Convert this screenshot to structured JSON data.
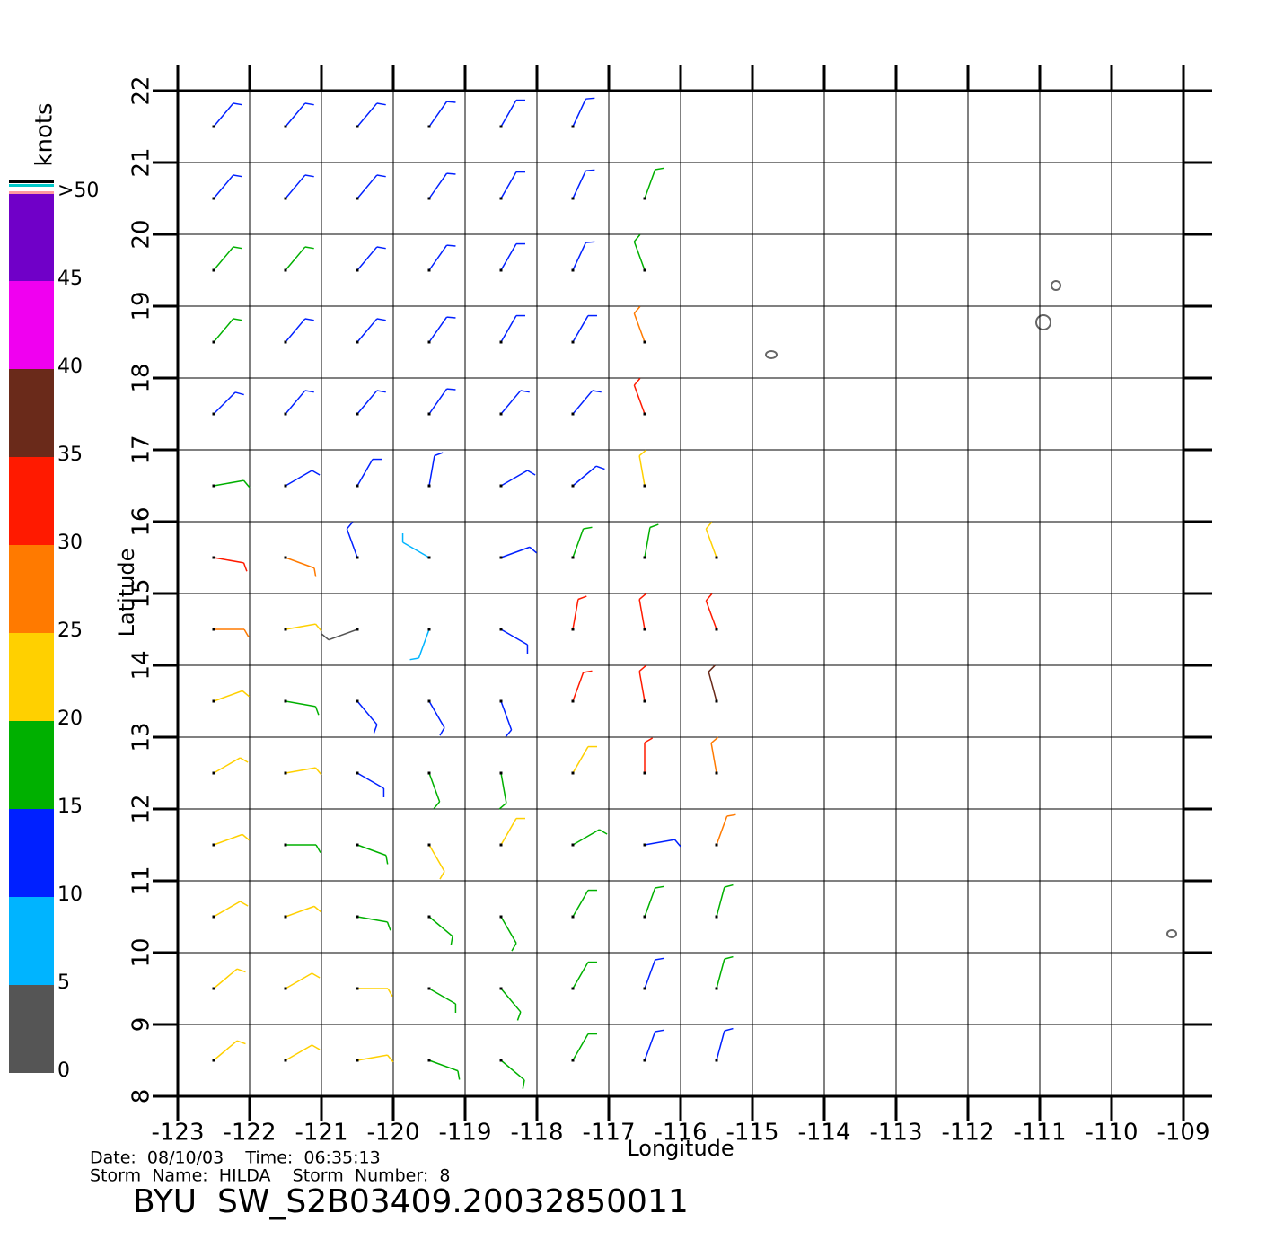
{
  "chart_data": {
    "type": "wind-barbs",
    "title": "BYU  SW_S2B03409.20032850011",
    "info": [
      "Date:  08/10/03    Time:  06:35:13",
      "Storm  Name:  HILDA    Storm  Number:  8"
    ],
    "x_label": "Longitude",
    "y_label": "Latitude",
    "xlim": [
      -123,
      -109
    ],
    "ylim": [
      8,
      22
    ],
    "xticks": [
      -123,
      -122,
      -121,
      -120,
      -119,
      -118,
      -117,
      -116,
      -115,
      -114,
      -113,
      -112,
      -111,
      -110,
      -109
    ],
    "yticks": [
      8,
      9,
      10,
      11,
      12,
      13,
      14,
      15,
      16,
      17,
      18,
      19,
      20,
      21,
      22
    ],
    "grid": true,
    "colorbar": {
      "title": "knots",
      "ticks": [
        0,
        5,
        10,
        15,
        20,
        25,
        30,
        35,
        40,
        45,
        {
          "value": 50,
          "label": ">50"
        }
      ],
      "colors": [
        "#555555",
        "#00b4ff",
        "#0020ff",
        "#00b000",
        "#ffd000",
        "#ff7a00",
        "#ff1a00",
        "#6a2a1a",
        "#f000f0",
        "#7000c8"
      ]
    },
    "wind": {
      "lon": [
        -122.5,
        -121.5,
        -120.5,
        -119.5,
        -118.5,
        -117.5,
        -116.5,
        -115.5
      ],
      "lat": [
        21.5,
        20.5,
        19.5,
        18.5,
        17.5,
        16.5,
        15.5,
        14.5,
        13.5,
        12.5,
        11.5,
        10.5,
        9.5,
        8.5
      ],
      "speed": [
        [
          13,
          13,
          14,
          12,
          12,
          12,
          null,
          null
        ],
        [
          14,
          14,
          13,
          12,
          12,
          12,
          17,
          null
        ],
        [
          16,
          15,
          14,
          13,
          12,
          12,
          18,
          null
        ],
        [
          15,
          14,
          13,
          12,
          12,
          13,
          26,
          null
        ],
        [
          14,
          13,
          12,
          12,
          12,
          14,
          30,
          null
        ],
        [
          17,
          14,
          11,
          10,
          11,
          14,
          24,
          null
        ],
        [
          30,
          25,
          11,
          9,
          11,
          18,
          18,
          22
        ],
        [
          28,
          22,
          4,
          6,
          10,
          32,
          33,
          33
        ],
        [
          22,
          17,
          12,
          12,
          14,
          30,
          34,
          35
        ],
        [
          21,
          20,
          13,
          16,
          19,
          22,
          30,
          28
        ],
        [
          20,
          16,
          15,
          22,
          21,
          18,
          14,
          25
        ],
        [
          21,
          20,
          19,
          18,
          17,
          18,
          15,
          17
        ],
        [
          22,
          20,
          20,
          18,
          17,
          16,
          14,
          16
        ],
        [
          23,
          22,
          20,
          18,
          16,
          16,
          14,
          14
        ]
      ],
      "direction": [
        [
          40,
          40,
          40,
          35,
          30,
          25,
          null,
          null
        ],
        [
          40,
          40,
          40,
          35,
          30,
          25,
          20,
          null
        ],
        [
          40,
          40,
          40,
          35,
          30,
          25,
          340,
          null
        ],
        [
          40,
          40,
          40,
          35,
          30,
          30,
          340,
          null
        ],
        [
          45,
          40,
          40,
          35,
          40,
          40,
          340,
          null
        ],
        [
          80,
          60,
          30,
          10,
          60,
          50,
          350,
          null
        ],
        [
          100,
          110,
          340,
          300,
          70,
          20,
          10,
          340
        ],
        [
          90,
          80,
          250,
          200,
          120,
          10,
          350,
          340
        ],
        [
          70,
          100,
          140,
          150,
          160,
          20,
          350,
          345
        ],
        [
          60,
          80,
          120,
          160,
          170,
          30,
          0,
          350
        ],
        [
          70,
          90,
          110,
          150,
          30,
          60,
          80,
          20
        ],
        [
          60,
          70,
          100,
          130,
          150,
          30,
          20,
          15
        ],
        [
          50,
          60,
          90,
          120,
          140,
          30,
          20,
          15
        ],
        [
          50,
          60,
          80,
          110,
          130,
          30,
          20,
          15
        ]
      ]
    }
  }
}
